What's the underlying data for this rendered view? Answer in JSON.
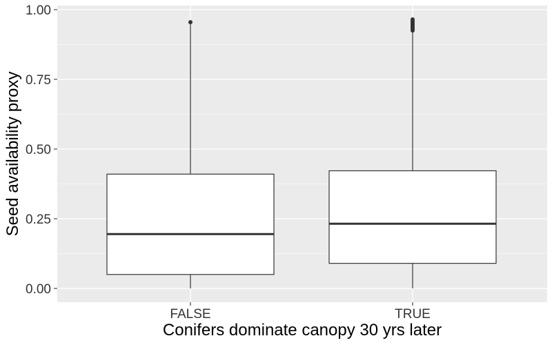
{
  "chart_data": {
    "type": "boxplot",
    "title": "",
    "xlabel": "Conifers dominate canopy 30 yrs later",
    "ylabel": "Seed availability proxy",
    "ylim": [
      -0.05,
      1.0
    ],
    "y_ticks": [
      0.0,
      0.25,
      0.5,
      0.75,
      1.0
    ],
    "y_tick_labels": [
      "0.00",
      "0.25",
      "0.50",
      "0.75",
      "1.00"
    ],
    "categories": [
      "FALSE",
      "TRUE"
    ],
    "boxes": [
      {
        "category": "FALSE",
        "whisker_low": 0.0,
        "q1": 0.05,
        "median": 0.195,
        "q3": 0.41,
        "whisker_high": 0.95,
        "outliers": [
          0.955
        ]
      },
      {
        "category": "TRUE",
        "whisker_low": 0.0,
        "q1": 0.09,
        "median": 0.232,
        "q3": 0.422,
        "whisker_high": 0.92,
        "outliers": [
          0.925,
          0.93,
          0.935,
          0.94,
          0.945,
          0.95,
          0.955,
          0.96,
          0.965
        ]
      }
    ],
    "grid": true,
    "legend": "none",
    "colors": {
      "panel_bg": "#EBEBEB",
      "grid": "#FFFFFF",
      "box_fill": "#FFFFFF",
      "box_stroke": "#333333"
    }
  }
}
